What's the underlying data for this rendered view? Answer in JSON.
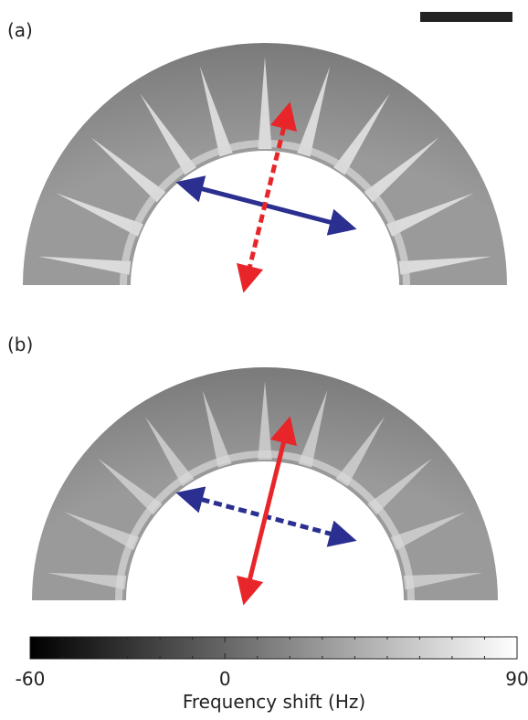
{
  "panels": [
    {
      "label": "(a)"
    },
    {
      "label": "(b)"
    }
  ],
  "colorbar": {
    "label": "Frequency shift (Hz)",
    "min": -60,
    "max": 90,
    "ticks": [
      -60,
      0,
      90
    ],
    "minor_ticks": [
      -50,
      -40,
      -30,
      -20,
      -10,
      10,
      20,
      30,
      40,
      50,
      60,
      70,
      80
    ]
  }
}
